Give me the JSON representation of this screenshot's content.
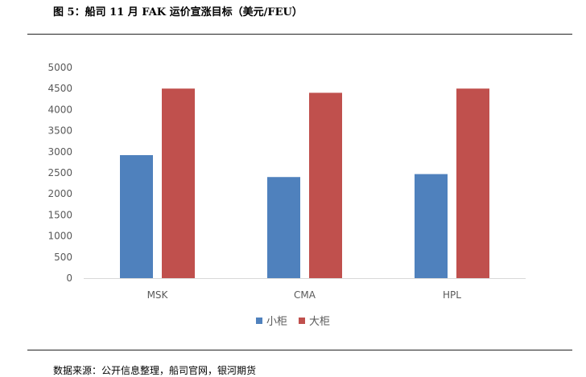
{
  "figure": {
    "title": "图 5：船司 11 月 FAK 运价宣涨目标（美元/FEU）",
    "source": "数据来源：公开信息整理，船司官网，银河期货"
  },
  "chart_data": {
    "type": "bar",
    "title": "",
    "xlabel": "",
    "ylabel": "",
    "categories": [
      "MSK",
      "CMA",
      "HPL"
    ],
    "series": [
      {
        "name": "小柜",
        "color": "#4F81BD",
        "values": [
          2920,
          2400,
          2470
        ]
      },
      {
        "name": "大柜",
        "color": "#C0504D",
        "values": [
          4500,
          4400,
          4500
        ]
      }
    ],
    "ylim": [
      0,
      5000
    ],
    "yticks": [
      0,
      500,
      1000,
      1500,
      2000,
      2500,
      3000,
      3500,
      4000,
      4500,
      5000
    ],
    "grid": false,
    "legend_position": "bottom"
  }
}
